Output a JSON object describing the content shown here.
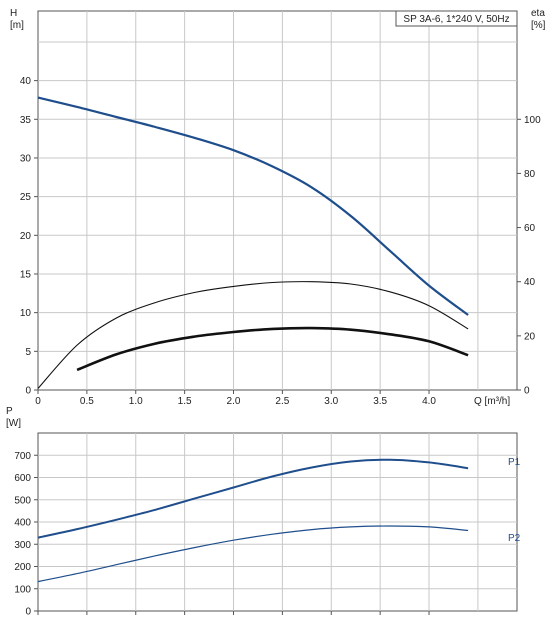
{
  "chart_data": [
    {
      "type": "line",
      "title": "SP 3A-6, 1*240 V, 50Hz",
      "xlabel": "Q [m³/h]",
      "ylabel_line1": "H",
      "ylabel_line2": "[m]",
      "y2label_line1": "eta",
      "y2label_line2": "[%]",
      "xlim": [
        0,
        4.9
      ],
      "ylim": [
        0,
        49
      ],
      "y2lim": [
        0,
        140
      ],
      "grid": true,
      "x_ticks": [
        "0",
        "0.5",
        "1.0",
        "1.5",
        "2.0",
        "2.5",
        "3.0",
        "3.5",
        "4.0"
      ],
      "x_tick_values": [
        0,
        0.5,
        1.0,
        1.5,
        2.0,
        2.5,
        3.0,
        3.5,
        4.0
      ],
      "y_ticks": [
        "0",
        "5",
        "10",
        "15",
        "20",
        "25",
        "30",
        "35",
        "40"
      ],
      "y_tick_values": [
        0,
        5,
        10,
        15,
        20,
        25,
        30,
        35,
        40
      ],
      "y2_ticks": [
        "0",
        "20",
        "40",
        "60",
        "80",
        "100"
      ],
      "y2_tick_values": [
        0,
        20,
        40,
        60,
        80,
        100
      ],
      "series": [
        {
          "id": "head",
          "axis": "left",
          "color": "#1f4e8c",
          "x": [
            0,
            0.4,
            0.8,
            1.2,
            1.6,
            2.0,
            2.4,
            2.8,
            3.2,
            3.6,
            4.0,
            4.4
          ],
          "y": [
            37.8,
            36.6,
            35.3,
            34.0,
            32.6,
            31.0,
            28.9,
            26.2,
            22.5,
            18.0,
            13.5,
            9.7
          ]
        },
        {
          "id": "eta-thin",
          "axis": "left",
          "color": "#111111",
          "x": [
            0,
            0.4,
            0.8,
            1.2,
            1.6,
            2.0,
            2.4,
            2.8,
            3.2,
            3.6,
            4.0,
            4.4
          ],
          "y": [
            0.2,
            5.8,
            9.3,
            11.3,
            12.6,
            13.4,
            13.9,
            14.0,
            13.7,
            12.7,
            10.9,
            7.9
          ]
        },
        {
          "id": "eta-thick",
          "axis": "left",
          "color": "#111111",
          "x": [
            0.4,
            0.8,
            1.2,
            1.6,
            2.0,
            2.4,
            2.8,
            3.2,
            3.6,
            4.0,
            4.4
          ],
          "y": [
            2.6,
            4.6,
            6.0,
            6.9,
            7.5,
            7.9,
            8.0,
            7.8,
            7.2,
            6.3,
            4.5
          ]
        }
      ]
    },
    {
      "type": "line",
      "ylabel_line1": "P",
      "ylabel_line2": "[W]",
      "xlim": [
        0,
        4.9
      ],
      "ylim": [
        0,
        800
      ],
      "grid": true,
      "y_ticks": [
        "0",
        "100",
        "200",
        "300",
        "400",
        "500",
        "600",
        "700"
      ],
      "y_tick_values": [
        0,
        100,
        200,
        300,
        400,
        500,
        600,
        700
      ],
      "series": [
        {
          "name": "P1",
          "color": "#1f4e8c",
          "x": [
            0,
            0.4,
            0.8,
            1.2,
            1.6,
            2.0,
            2.4,
            2.8,
            3.2,
            3.6,
            4.0,
            4.4
          ],
          "y": [
            330,
            368,
            410,
            455,
            505,
            555,
            605,
            645,
            672,
            680,
            668,
            642
          ]
        },
        {
          "name": "P2",
          "color": "#1f4e8c",
          "x": [
            0,
            0.4,
            0.8,
            1.2,
            1.6,
            2.0,
            2.4,
            2.8,
            3.2,
            3.6,
            4.0,
            4.4
          ],
          "y": [
            132,
            168,
            208,
            248,
            285,
            318,
            345,
            366,
            378,
            382,
            378,
            362
          ]
        }
      ]
    }
  ]
}
